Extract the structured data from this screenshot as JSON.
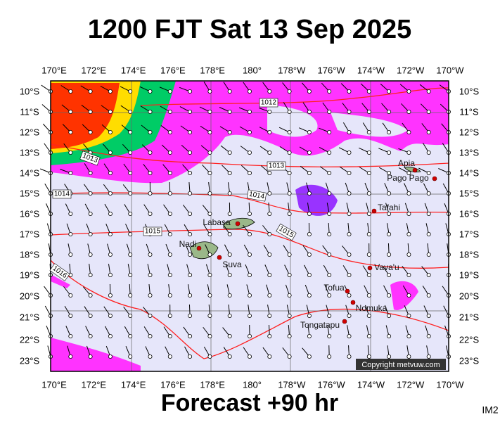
{
  "header": {
    "title": "1200 FJT Sat 13 Sep 2025"
  },
  "axes": {
    "lon": [
      "170°E",
      "172°E",
      "174°E",
      "176°E",
      "178°E",
      "180°",
      "178°W",
      "176°W",
      "174°W",
      "172°W",
      "170°W"
    ],
    "lat": [
      "10°S",
      "11°S",
      "12°S",
      "13°S",
      "14°S",
      "15°S",
      "16°S",
      "17°S",
      "18°S",
      "19°S",
      "20°S",
      "21°S",
      "22°S",
      "23°S"
    ]
  },
  "isobars": [
    "1012",
    "1013",
    "1013",
    "1014",
    "1014",
    "1015",
    "1015",
    "1016"
  ],
  "places": [
    "Apia",
    "Pago Pago",
    "Tafahi",
    "Labasa",
    "Nadi",
    "Suva",
    "Vava'u",
    "Tofua",
    "Nomuka",
    "Tongatapu"
  ],
  "copyright": "Copyright metvuw.com",
  "footer": "Forecast +90 hr",
  "code": "IM2"
}
